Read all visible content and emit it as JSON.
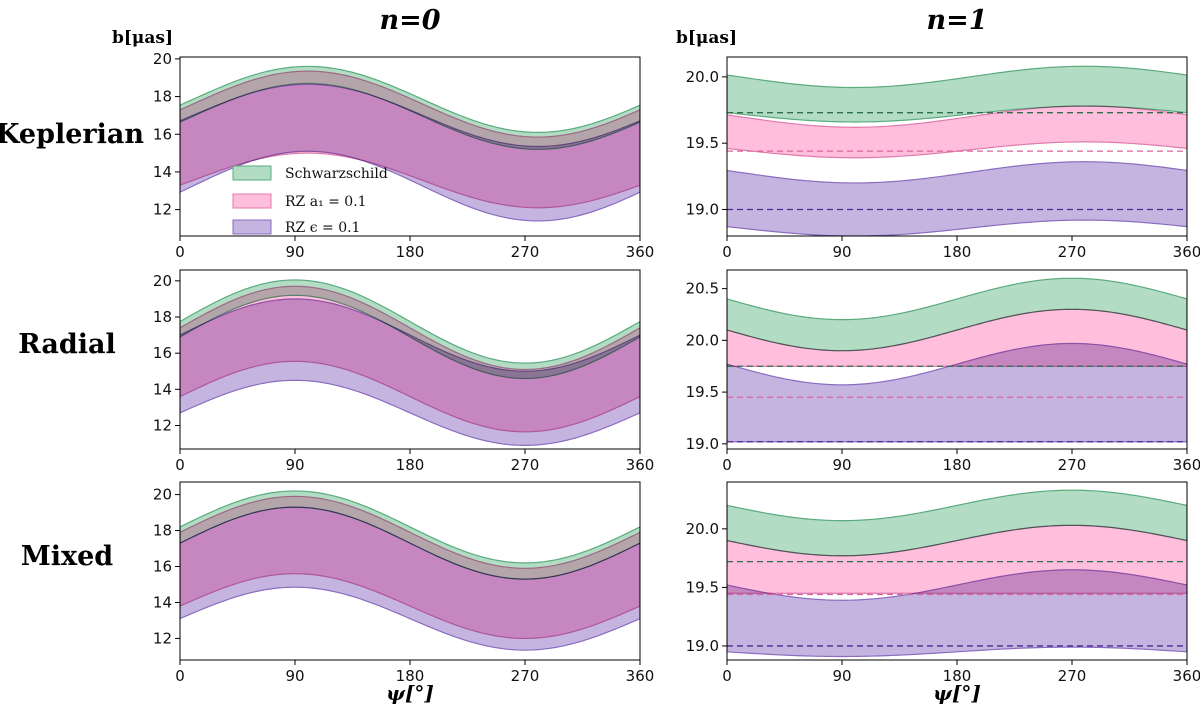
{
  "columns": [
    {
      "title": "n=0",
      "ylabel": "b[μas]"
    },
    {
      "title": "n=1",
      "ylabel": "b[μas]"
    }
  ],
  "rows": [
    {
      "label": "Keplerian"
    },
    {
      "label": "Radial"
    },
    {
      "label": "Mixed"
    }
  ],
  "xlabel": "ψ[°]",
  "legend": {
    "items": [
      {
        "name": "Schwarzschild",
        "color": "#5aab7e"
      },
      {
        "name": "RZ a₁ = 0.1",
        "color": "#ff9ccb"
      },
      {
        "name": "RZ ϵ = 0.1",
        "color": "#9577c2"
      }
    ]
  },
  "colors": {
    "schwarzschild_band": "#b3dcc4",
    "schwarzschild_edge": "#5aab7e",
    "schwarzschild_dash": "#2f6e4c",
    "rz_a1_band": "#ffbfdc",
    "rz_a1_edge": "#e07aae",
    "rz_a1_dash": "#d8649c",
    "rz_eps_band": "#c6b4e0",
    "rz_eps_edge": "#8a6cc0",
    "rz_eps_dash": "#4a2a90"
  },
  "chart_data": [
    {
      "id": "kep-n0",
      "type": "area",
      "row": 0,
      "col": 0,
      "xlabel": "",
      "ylabel": "b[μas]",
      "xlim": [
        0,
        360
      ],
      "ylim": [
        10.6,
        20.1
      ],
      "xticks": [
        0,
        90,
        180,
        270,
        360
      ],
      "yticks": [
        12,
        14,
        16,
        18,
        20
      ],
      "yticklabels": [
        "12",
        "14",
        "16",
        "18",
        "20"
      ],
      "bands": [
        {
          "name": "Schwarzschild",
          "upper": {
            "mean": 17.85,
            "amp": 1.75,
            "phase": 10
          },
          "lower": {
            "mean": 16.95,
            "amp": 1.75,
            "phase": 10
          }
        },
        {
          "name": "RZ a1 = 0.1",
          "upper": {
            "mean": 17.6,
            "amp": 1.75,
            "phase": 10
          },
          "lower": {
            "mean": 13.55,
            "amp": 1.45,
            "phase": 10
          }
        },
        {
          "name": "RZ eps = 0.1",
          "upper": {
            "mean": 17.0,
            "amp": 1.65,
            "phase": 10
          },
          "lower": {
            "mean": 13.25,
            "amp": 1.85,
            "phase": 10
          }
        }
      ],
      "hlines": []
    },
    {
      "id": "kep-n1",
      "type": "area",
      "row": 0,
      "col": 1,
      "xlabel": "",
      "ylabel": "b[μas]",
      "xlim": [
        0,
        360
      ],
      "ylim": [
        18.8,
        20.15
      ],
      "xticks": [
        0,
        90,
        180,
        270,
        360
      ],
      "yticks": [
        19.0,
        19.5,
        20.0
      ],
      "yticklabels": [
        "19.0",
        "19.5",
        "20.0"
      ],
      "bands": [
        {
          "name": "Schwarzschild",
          "upper": {
            "mean": 20.0,
            "amp": 0.08,
            "phase": 190
          },
          "lower": {
            "mean": 19.72,
            "amp": 0.06,
            "phase": 190
          }
        },
        {
          "name": "RZ a1 = 0.1",
          "upper": {
            "mean": 19.7,
            "amp": 0.08,
            "phase": 190
          },
          "lower": {
            "mean": 19.45,
            "amp": 0.06,
            "phase": 190
          }
        },
        {
          "name": "RZ eps = 0.1",
          "upper": {
            "mean": 19.28,
            "amp": 0.08,
            "phase": 190
          },
          "lower": {
            "mean": 18.86,
            "amp": 0.06,
            "phase": 190
          }
        }
      ],
      "hlines": [
        {
          "name": "Schwarzschild",
          "y": 19.73
        },
        {
          "name": "RZ a1 = 0.1",
          "y": 19.44
        },
        {
          "name": "RZ eps = 0.1",
          "y": 19.0
        }
      ]
    },
    {
      "id": "rad-n0",
      "type": "area",
      "row": 1,
      "col": 0,
      "xlabel": "",
      "ylabel": "b[μas]",
      "xlim": [
        0,
        360
      ],
      "ylim": [
        10.7,
        20.6
      ],
      "xticks": [
        0,
        90,
        180,
        270,
        360
      ],
      "yticks": [
        12,
        14,
        16,
        18,
        20
      ],
      "yticklabels": [
        "12",
        "14",
        "16",
        "18",
        "20"
      ],
      "bands": [
        {
          "name": "Schwarzschild",
          "upper": {
            "mean": 17.75,
            "amp": 2.3,
            "phase": 0
          },
          "lower": {
            "mean": 16.9,
            "amp": 2.3,
            "phase": 0
          }
        },
        {
          "name": "RZ a1 = 0.1",
          "upper": {
            "mean": 17.4,
            "amp": 2.3,
            "phase": 0
          },
          "lower": {
            "mean": 13.6,
            "amp": 1.95,
            "phase": 0
          }
        },
        {
          "name": "RZ eps = 0.1",
          "upper": {
            "mean": 17.0,
            "amp": 2.0,
            "phase": 0
          },
          "lower": {
            "mean": 12.7,
            "amp": 1.8,
            "phase": 0
          }
        }
      ],
      "hlines": []
    },
    {
      "id": "rad-n1",
      "type": "area",
      "row": 1,
      "col": 1,
      "xlabel": "",
      "ylabel": "b[μas]",
      "xlim": [
        0,
        360
      ],
      "ylim": [
        18.95,
        20.68
      ],
      "xticks": [
        0,
        90,
        180,
        270,
        360
      ],
      "yticks": [
        19.0,
        19.5,
        20.0,
        20.5
      ],
      "yticklabels": [
        "19.0",
        "19.5",
        "20.0",
        "20.5"
      ],
      "bands": [
        {
          "name": "Schwarzschild",
          "upper": {
            "mean": 20.4,
            "amp": 0.2,
            "phase": 180
          },
          "lower": {
            "mean": 20.1,
            "amp": 0.2,
            "phase": 180
          }
        },
        {
          "name": "RZ a1 = 0.1",
          "upper": {
            "mean": 20.1,
            "amp": 0.2,
            "phase": 180
          },
          "lower": {
            "mean": 19.75,
            "amp": 0.0,
            "phase": 180
          }
        },
        {
          "name": "RZ eps = 0.1",
          "upper": {
            "mean": 19.77,
            "amp": 0.2,
            "phase": 180
          },
          "lower": {
            "mean": 19.02,
            "amp": 0.0,
            "phase": 180
          }
        }
      ],
      "hlines": [
        {
          "name": "Schwarzschild",
          "y": 19.75
        },
        {
          "name": "RZ a1 = 0.1",
          "y": 19.45
        },
        {
          "name": "RZ eps = 0.1",
          "y": 19.02
        }
      ]
    },
    {
      "id": "mix-n0",
      "type": "area",
      "row": 2,
      "col": 0,
      "xlabel": "ψ[°]",
      "ylabel": "b[μas]",
      "xlim": [
        0,
        360
      ],
      "ylim": [
        10.8,
        20.7
      ],
      "xticks": [
        0,
        90,
        180,
        270,
        360
      ],
      "yticks": [
        12,
        14,
        16,
        18,
        20
      ],
      "yticklabels": [
        "12",
        "14",
        "16",
        "18",
        "20"
      ],
      "bands": [
        {
          "name": "Schwarzschild",
          "upper": {
            "mean": 18.2,
            "amp": 2.0,
            "phase": 0
          },
          "lower": {
            "mean": 17.3,
            "amp": 2.0,
            "phase": 0
          }
        },
        {
          "name": "RZ a1 = 0.1",
          "upper": {
            "mean": 17.9,
            "amp": 2.0,
            "phase": 0
          },
          "lower": {
            "mean": 13.8,
            "amp": 1.8,
            "phase": 0
          }
        },
        {
          "name": "RZ eps = 0.1",
          "upper": {
            "mean": 17.3,
            "amp": 2.0,
            "phase": 0
          },
          "lower": {
            "mean": 13.1,
            "amp": 1.75,
            "phase": 0
          }
        }
      ],
      "hlines": []
    },
    {
      "id": "mix-n1",
      "type": "area",
      "row": 2,
      "col": 1,
      "xlabel": "ψ[°]",
      "ylabel": "b[μas]",
      "xlim": [
        0,
        360
      ],
      "ylim": [
        18.88,
        20.4
      ],
      "xticks": [
        0,
        90,
        180,
        270,
        360
      ],
      "yticks": [
        19.0,
        19.5,
        20.0
      ],
      "yticklabels": [
        "19.0",
        "19.5",
        "20.0"
      ],
      "bands": [
        {
          "name": "Schwarzschild",
          "upper": {
            "mean": 20.2,
            "amp": 0.13,
            "phase": 180
          },
          "lower": {
            "mean": 19.9,
            "amp": 0.13,
            "phase": 180
          }
        },
        {
          "name": "RZ a1 = 0.1",
          "upper": {
            "mean": 19.9,
            "amp": 0.13,
            "phase": 180
          },
          "lower": {
            "mean": 19.45,
            "amp": 0.0,
            "phase": 180
          }
        },
        {
          "name": "RZ eps = 0.1",
          "upper": {
            "mean": 19.52,
            "amp": 0.13,
            "phase": 180
          },
          "lower": {
            "mean": 18.95,
            "amp": 0.04,
            "phase": 180
          }
        }
      ],
      "hlines": [
        {
          "name": "Schwarzschild",
          "y": 19.72
        },
        {
          "name": "RZ a1 = 0.1",
          "y": 19.44
        },
        {
          "name": "RZ eps = 0.1",
          "y": 19.0
        }
      ]
    }
  ]
}
